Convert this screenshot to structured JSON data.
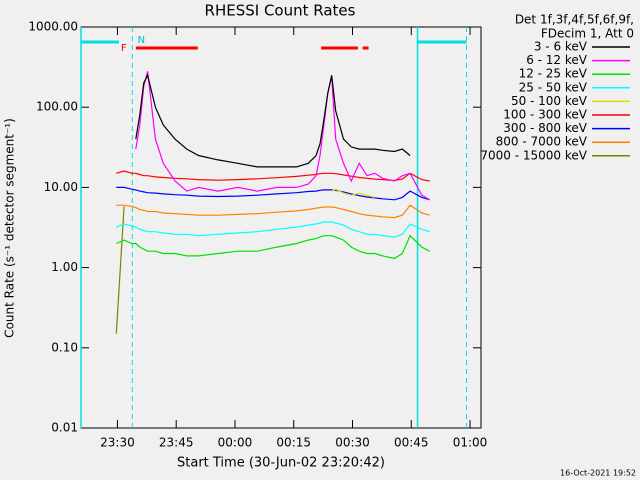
{
  "chart_data": {
    "type": "line",
    "title": "RHESSI Count Rates",
    "xlabel": "Start Time (30-Jun-02 23:20:42)",
    "ylabel": "Count Rate (s⁻¹ detector segment⁻¹)",
    "footer": "16-Oct-2021 19:52",
    "legend_header": [
      "Det 1f,3f,4f,5f,6f,9f,",
      "FDecim 1, Att 0"
    ],
    "log_y": true,
    "xlim": [
      0,
      102.1
    ],
    "xticks": [
      {
        "value": 9.3,
        "label": "23:30"
      },
      {
        "value": 24.3,
        "label": "23:45"
      },
      {
        "value": 39.3,
        "label": "00:00"
      },
      {
        "value": 54.3,
        "label": "00:15"
      },
      {
        "value": 69.3,
        "label": "00:30"
      },
      {
        "value": 84.3,
        "label": "00:45"
      },
      {
        "value": 99.3,
        "label": "01:00"
      }
    ],
    "ylim": [
      0.01,
      1000
    ],
    "yticks": [
      {
        "value": 0.01,
        "label": "0.01"
      },
      {
        "value": 0.1,
        "label": "0.10"
      },
      {
        "value": 1,
        "label": "1.00"
      },
      {
        "value": 10,
        "label": "10.00"
      },
      {
        "value": 100,
        "label": "100.00"
      },
      {
        "value": 1000,
        "label": "1000.00"
      }
    ],
    "flare_label": "F",
    "night_label": "N",
    "flare_intervals": [
      [
        14,
        29.8
      ],
      [
        61.3,
        70.7
      ],
      [
        71.9,
        73.4
      ]
    ],
    "night_intervals": [
      {
        "start": 0,
        "end": 9.7,
        "dashed": 13.1
      },
      {
        "start": 85.9,
        "end": 98.4,
        "dashed": 98.4
      }
    ],
    "x": [
      9,
      11,
      13,
      14,
      15,
      16,
      17,
      19,
      21,
      24,
      27,
      30,
      35,
      40,
      45,
      50,
      55,
      58,
      60,
      61,
      62,
      63,
      64,
      65,
      67,
      69,
      71,
      73,
      75,
      77,
      80,
      82,
      84,
      87,
      89
    ],
    "series": [
      {
        "name": "3 - 6 keV",
        "color": "#000000",
        "values": [
          null,
          null,
          null,
          40,
          80,
          200,
          250,
          100,
          60,
          40,
          30,
          25,
          22,
          20,
          18,
          18,
          18,
          20,
          25,
          35,
          70,
          150,
          250,
          90,
          40,
          32,
          30,
          30,
          30,
          29,
          28,
          30,
          25,
          null,
          null
        ]
      },
      {
        "name": "6 - 12 keV",
        "color": "#ff00ff",
        "values": [
          null,
          null,
          null,
          30,
          60,
          180,
          280,
          40,
          20,
          12,
          9,
          10,
          9,
          10,
          9,
          10,
          10,
          11,
          14,
          25,
          60,
          150,
          240,
          40,
          20,
          12,
          20,
          14,
          15,
          13,
          12,
          14,
          15,
          8,
          7
        ]
      },
      {
        "name": "12 - 25 keV",
        "color": "#00e000",
        "values": [
          2,
          2.2,
          2,
          2,
          1.8,
          1.7,
          1.6,
          1.6,
          1.5,
          1.5,
          1.4,
          1.4,
          1.5,
          1.6,
          1.6,
          1.8,
          2,
          2.2,
          2.3,
          2.4,
          2.5,
          2.5,
          2.5,
          2.4,
          2.2,
          1.8,
          1.6,
          1.5,
          1.5,
          1.4,
          1.3,
          1.5,
          2.5,
          1.8,
          1.6
        ]
      },
      {
        "name": "25 - 50 keV",
        "color": "#00ffff",
        "values": [
          3.2,
          3.5,
          3.3,
          3.2,
          3,
          2.9,
          2.8,
          2.8,
          2.7,
          2.6,
          2.6,
          2.5,
          2.6,
          2.7,
          2.8,
          3,
          3.2,
          3.4,
          3.5,
          3.6,
          3.7,
          3.7,
          3.7,
          3.6,
          3.4,
          3,
          2.8,
          2.6,
          2.6,
          2.5,
          2.4,
          2.6,
          3.5,
          3,
          2.8
        ]
      },
      {
        "name": "50 - 100 keV",
        "color": "#e0e000",
        "values": [
          null,
          null,
          null,
          null,
          null,
          null,
          null,
          null,
          null,
          null,
          null,
          null,
          null,
          null,
          null,
          null,
          null,
          null,
          null,
          null,
          null,
          null,
          9,
          9.5,
          8.5,
          8,
          8.5,
          8,
          7.5,
          null,
          null,
          null,
          null,
          null,
          null
        ]
      },
      {
        "name": "100 - 300 keV",
        "color": "#ff0000",
        "values": [
          15,
          16,
          15,
          15,
          14.5,
          14,
          14,
          13.5,
          13.3,
          13,
          12.8,
          12.5,
          12.3,
          12.5,
          12.8,
          13.2,
          13.7,
          14.2,
          14.5,
          14.8,
          15,
          15,
          15,
          14.8,
          14.3,
          13.8,
          13.3,
          13,
          12.7,
          12.5,
          12.2,
          12.7,
          15,
          12.5,
          12
        ]
      },
      {
        "name": "300 - 800 keV",
        "color": "#0000ff",
        "values": [
          10,
          10,
          9.5,
          9.3,
          9,
          8.8,
          8.6,
          8.5,
          8.3,
          8.1,
          8,
          7.8,
          7.7,
          7.8,
          8,
          8.3,
          8.6,
          8.9,
          9,
          9.2,
          9.3,
          9.3,
          9.3,
          9.2,
          8.8,
          8.3,
          7.9,
          7.6,
          7.4,
          7.2,
          7,
          7.5,
          9,
          7.5,
          7
        ]
      },
      {
        "name": "800 - 7000 keV",
        "color": "#ff8000",
        "values": [
          6,
          6,
          5.8,
          5.6,
          5.3,
          5.2,
          5,
          5,
          4.8,
          4.7,
          4.6,
          4.5,
          4.5,
          4.6,
          4.7,
          4.9,
          5.1,
          5.3,
          5.5,
          5.6,
          5.7,
          5.7,
          5.7,
          5.6,
          5.3,
          5,
          4.7,
          4.5,
          4.4,
          4.3,
          4.2,
          4.5,
          6,
          4.8,
          4.5
        ]
      },
      {
        "name": "7000 - 15000 keV",
        "color": "#808000",
        "values": [
          0.15,
          5.8,
          null,
          null,
          null,
          null,
          null,
          null,
          null,
          null,
          null,
          null,
          null,
          null,
          null,
          null,
          null,
          null,
          null,
          null,
          null,
          null,
          null,
          null,
          null,
          null,
          null,
          null,
          null,
          null,
          null,
          null,
          null,
          null,
          null
        ]
      }
    ]
  }
}
